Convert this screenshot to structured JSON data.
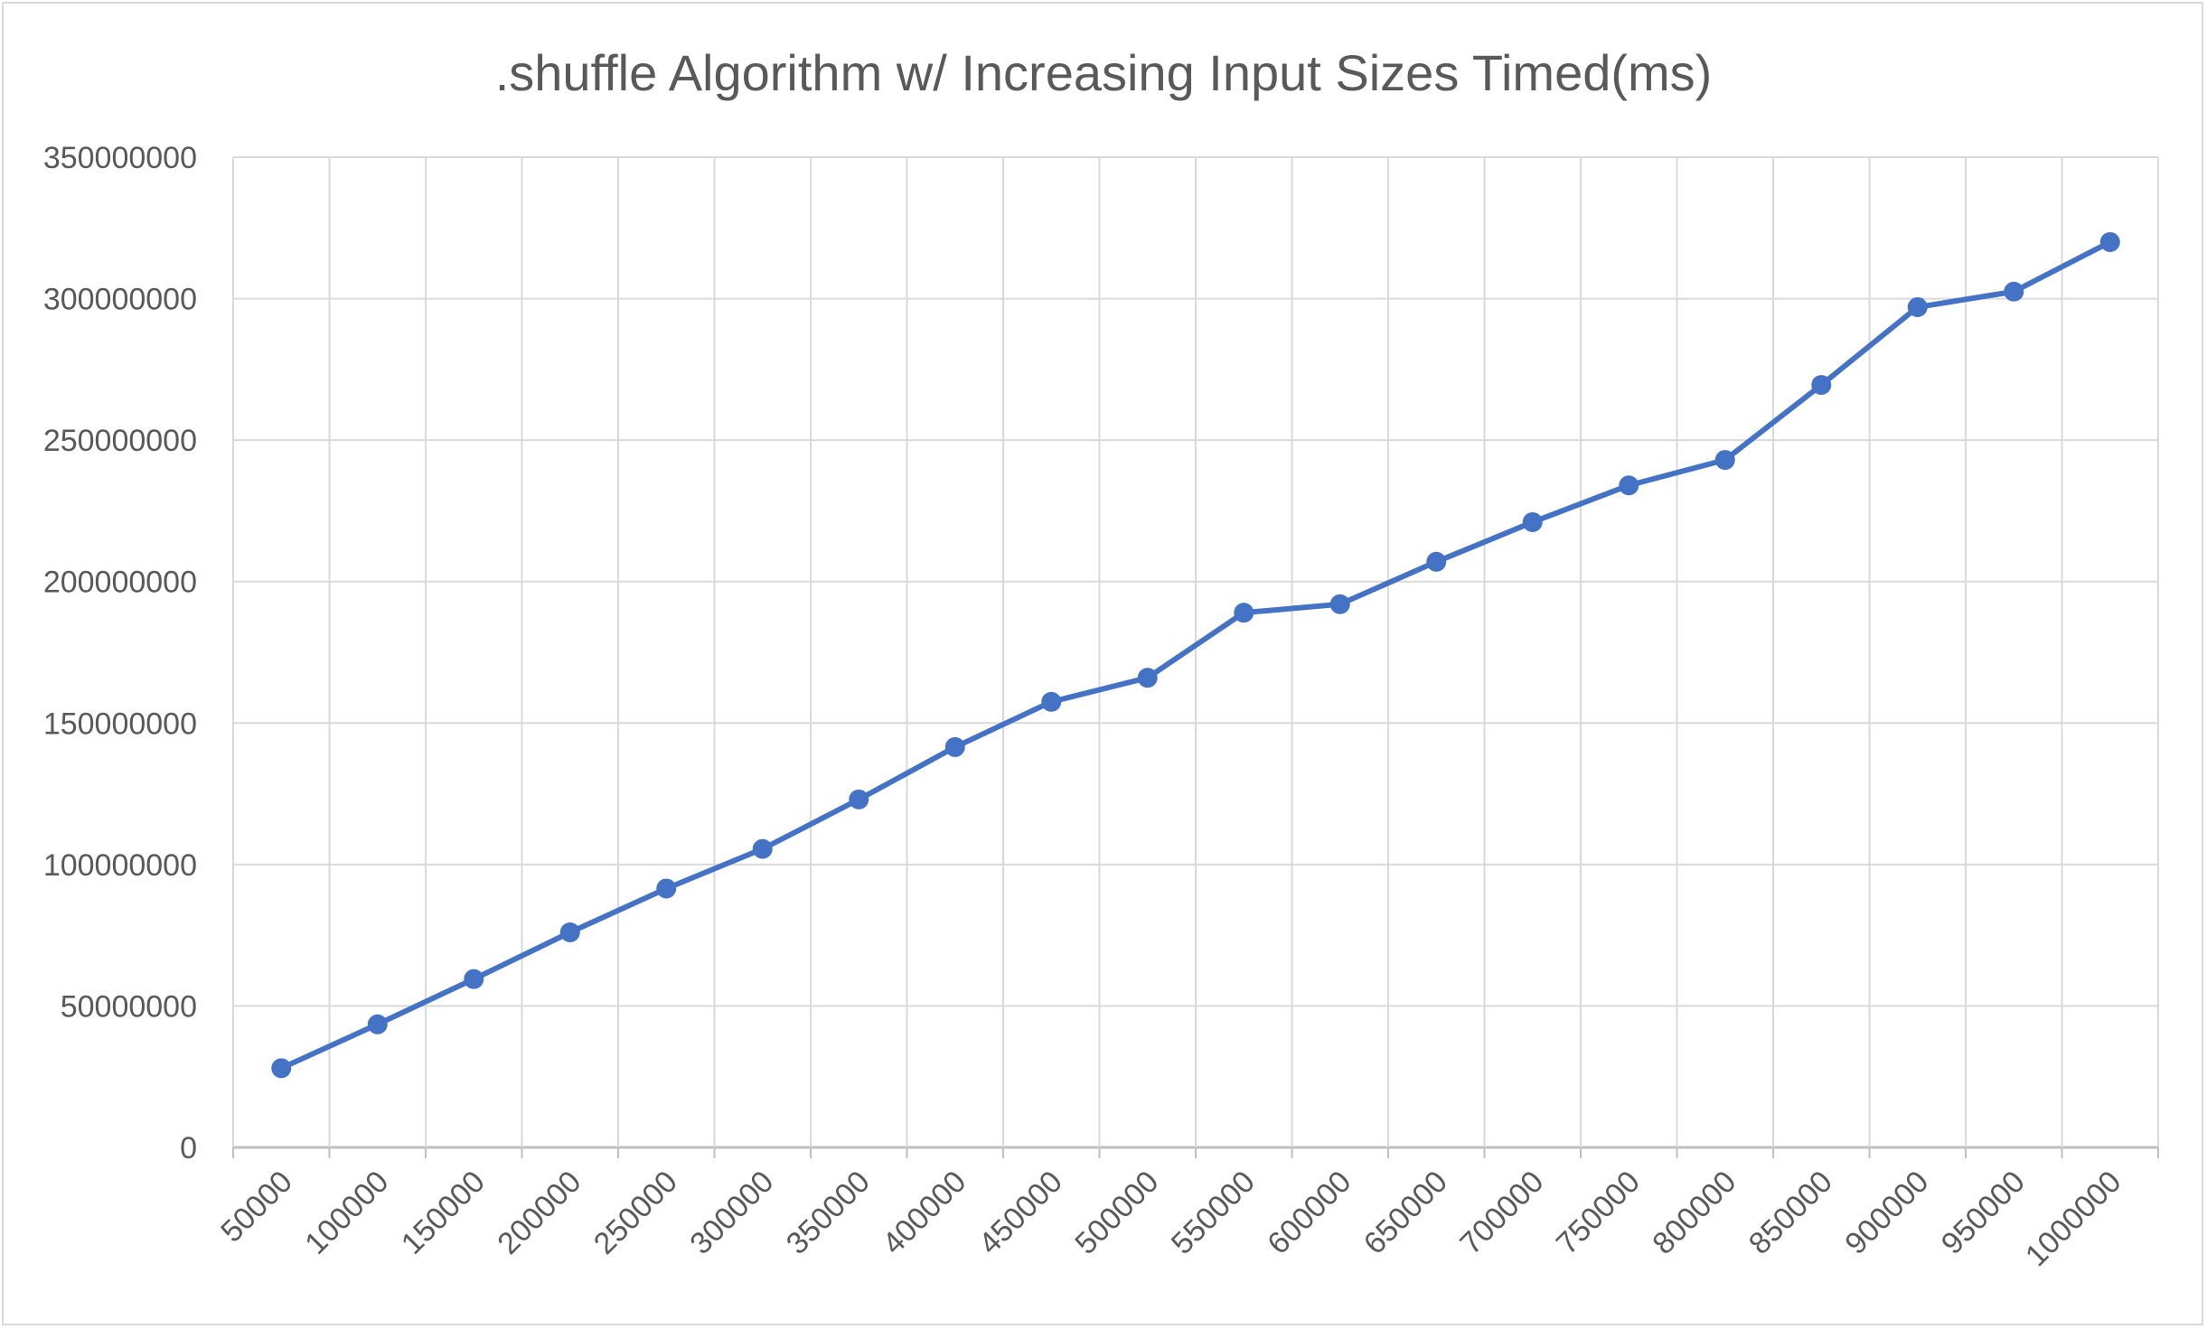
{
  "chart_data": {
    "type": "line",
    "title": ".shuffle Algorithm w/ Increasing Input Sizes Timed(ms)",
    "xlabel": "",
    "ylabel": "",
    "categories": [
      "50000",
      "100000",
      "150000",
      "200000",
      "250000",
      "300000",
      "350000",
      "400000",
      "450000",
      "500000",
      "550000",
      "600000",
      "650000",
      "700000",
      "750000",
      "800000",
      "850000",
      "900000",
      "950000",
      "1000000"
    ],
    "series": [
      {
        "values": [
          28000000,
          43500000,
          59500000,
          76000000,
          91500000,
          105500000,
          123000000,
          141500000,
          157500000,
          166000000,
          189000000,
          192000000,
          207000000,
          221000000,
          234000000,
          243000000,
          269500000,
          297000000,
          302500000,
          320000000
        ],
        "color": "#4472c4"
      }
    ],
    "ylim": [
      0,
      350000000
    ],
    "yticks": [
      "0",
      "50000000",
      "100000000",
      "150000000",
      "200000000",
      "250000000",
      "300000000",
      "350000000"
    ],
    "grid": true,
    "legend": "none"
  }
}
